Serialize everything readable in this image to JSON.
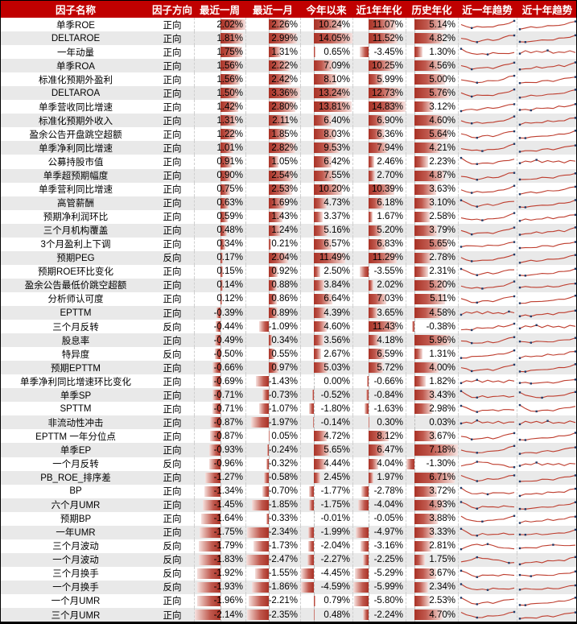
{
  "chart_data": {
    "type": "table",
    "title": "",
    "columns": [
      "因子名称",
      "因子方向",
      "最近一周",
      "最近一月",
      "今年以来",
      "近1年年化",
      "历史年化",
      "近一年趋势",
      "近十年趋势"
    ],
    "bar_columns": [
      "week",
      "month",
      "ytd",
      "y1",
      "hist"
    ],
    "bar_scales": {
      "week": {
        "min": -2.14,
        "max": 2.02
      },
      "month": {
        "min": -2.47,
        "max": 3.36
      },
      "ytd": {
        "min": -4.59,
        "max": 14.05
      },
      "y1": {
        "min": -5.99,
        "max": 14.83
      },
      "hist": {
        "min": -1.3,
        "max": 7.18
      }
    },
    "rows": [
      {
        "name": "单季ROE",
        "direction": "正向",
        "values": [
          2.02,
          2.26,
          10.24,
          11.07,
          5.14
        ],
        "trends": [
          "dipRise",
          "rise"
        ]
      },
      {
        "name": "DELTAROE",
        "direction": "正向",
        "values": [
          1.81,
          2.99,
          14.05,
          11.52,
          4.82
        ],
        "trends": [
          "dipRise2",
          "rise"
        ]
      },
      {
        "name": "一年动量",
        "direction": "正向",
        "values": [
          1.75,
          1.31,
          0.65,
          -3.45,
          1.3
        ],
        "trends": [
          "fallFlat",
          "choppy"
        ]
      },
      {
        "name": "单季ROA",
        "direction": "正向",
        "values": [
          1.56,
          2.22,
          7.09,
          10.25,
          4.56
        ],
        "trends": [
          "dipRise",
          "riseWiggle"
        ]
      },
      {
        "name": "标准化预期外盈利",
        "direction": "正向",
        "values": [
          1.56,
          2.42,
          8.1,
          5.99,
          5.0
        ],
        "trends": [
          "dipRise2",
          "rise"
        ]
      },
      {
        "name": "DELTAROA",
        "direction": "正向",
        "values": [
          1.5,
          3.36,
          13.24,
          12.73,
          5.76
        ],
        "trends": [
          "dipRise",
          "rise"
        ]
      },
      {
        "name": "单季营收同比增速",
        "direction": "正向",
        "values": [
          1.42,
          2.8,
          13.81,
          14.83,
          3.12
        ],
        "trends": [
          "rise",
          "riseWiggle"
        ]
      },
      {
        "name": "标准化预期外收入",
        "direction": "正向",
        "values": [
          1.31,
          2.11,
          6.4,
          6.9,
          4.6
        ],
        "trends": [
          "dipRise",
          "riseWiggle"
        ]
      },
      {
        "name": "盈余公告开盘跳空超额",
        "direction": "正向",
        "values": [
          1.22,
          1.85,
          8.03,
          6.36,
          5.64
        ],
        "trends": [
          "dipRise2",
          "rise"
        ]
      },
      {
        "name": "单季净利同比增速",
        "direction": "正向",
        "values": [
          1.01,
          2.82,
          9.53,
          7.94,
          4.21
        ],
        "trends": [
          "dipRise",
          "rise"
        ]
      },
      {
        "name": "公募持股市值",
        "direction": "正向",
        "values": [
          0.91,
          1.05,
          6.42,
          2.46,
          2.23
        ],
        "trends": [
          "fallRise",
          "choppy"
        ]
      },
      {
        "name": "单季超预期幅度",
        "direction": "正向",
        "values": [
          0.9,
          2.54,
          7.55,
          2.7,
          4.87
        ],
        "trends": [
          "dipRise2",
          "rise"
        ]
      },
      {
        "name": "单季营利同比增速",
        "direction": "正向",
        "values": [
          0.75,
          2.53,
          10.2,
          10.39,
          3.63
        ],
        "trends": [
          "dipRise",
          "rise"
        ]
      },
      {
        "name": "高管薪酬",
        "direction": "正向",
        "values": [
          0.63,
          1.69,
          4.73,
          6.18,
          3.1
        ],
        "trends": [
          "fallRise",
          "rise"
        ]
      },
      {
        "name": "预期净利润环比",
        "direction": "正向",
        "values": [
          0.59,
          1.43,
          3.37,
          1.67,
          2.58
        ],
        "trends": [
          "dipRise",
          "riseWiggle"
        ]
      },
      {
        "name": "三个月机构覆盖",
        "direction": "正向",
        "values": [
          0.48,
          1.24,
          5.16,
          5.2,
          3.79
        ],
        "trends": [
          "dipRise",
          "riseWiggle"
        ]
      },
      {
        "name": "3个月盈利上下调",
        "direction": "正向",
        "values": [
          0.34,
          0.21,
          6.57,
          6.83,
          5.65
        ],
        "trends": [
          "flatRise",
          "rise"
        ]
      },
      {
        "name": "预期PEG",
        "direction": "反向",
        "values": [
          0.17,
          2.04,
          11.49,
          11.29,
          2.78
        ],
        "trends": [
          "dipRise2",
          "rise"
        ]
      },
      {
        "name": "预期ROE环比变化",
        "direction": "正向",
        "values": [
          0.15,
          0.92,
          2.5,
          -3.55,
          2.31
        ],
        "trends": [
          "fallRise",
          "rise"
        ]
      },
      {
        "name": "盈余公告最低价跳空超额",
        "direction": "正向",
        "values": [
          0.14,
          0.88,
          3.84,
          2.02,
          5.2
        ],
        "trends": [
          "dipRise",
          "flatRise"
        ]
      },
      {
        "name": "分析师认可度",
        "direction": "正向",
        "values": [
          0.12,
          0.86,
          6.64,
          7.03,
          5.11
        ],
        "trends": [
          "dipRise2",
          "rise"
        ]
      },
      {
        "name": "EPTTM",
        "direction": "正向",
        "values": [
          -0.39,
          0.89,
          4.39,
          3.65,
          4.58
        ],
        "trends": [
          "choppy",
          "riseWiggle"
        ]
      },
      {
        "name": "三个月反转",
        "direction": "反向",
        "values": [
          -0.44,
          -1.09,
          4.6,
          11.43,
          -0.38
        ],
        "trends": [
          "riseWiggle",
          "choppy"
        ]
      },
      {
        "name": "股息率",
        "direction": "正向",
        "values": [
          -0.49,
          0.34,
          3.56,
          4.18,
          5.96
        ],
        "trends": [
          "dipRise",
          "flatRise"
        ]
      },
      {
        "name": "特异度",
        "direction": "反向",
        "values": [
          -0.5,
          0.55,
          2.67,
          6.59,
          1.31
        ],
        "trends": [
          "rise",
          "riseWiggle"
        ]
      },
      {
        "name": "预期EPTTM",
        "direction": "正向",
        "values": [
          -0.66,
          0.97,
          5.03,
          5.72,
          4.0
        ],
        "trends": [
          "dipRise",
          "rise"
        ]
      },
      {
        "name": "单季净利同比增速环比变化",
        "direction": "正向",
        "values": [
          -0.69,
          -1.43,
          0.0,
          -0.66,
          1.82
        ],
        "trends": [
          "choppy",
          "flatRise"
        ]
      },
      {
        "name": "单季SP",
        "direction": "正向",
        "values": [
          -0.71,
          -0.73,
          -0.52,
          -0.84,
          3.43
        ],
        "trends": [
          "fallFlat",
          "fallRise"
        ]
      },
      {
        "name": "SPTTM",
        "direction": "正向",
        "values": [
          -0.71,
          -1.07,
          -1.8,
          -1.63,
          2.98
        ],
        "trends": [
          "fallFlat",
          "fallRise"
        ]
      },
      {
        "name": "非流动性冲击",
        "direction": "正向",
        "values": [
          -0.87,
          -1.97,
          -0.14,
          0.3,
          0.03
        ],
        "trends": [
          "choppy",
          "choppy"
        ]
      },
      {
        "name": "EPTTM 一年分位点",
        "direction": "正向",
        "values": [
          -0.87,
          0.05,
          4.72,
          8.12,
          3.67
        ],
        "trends": [
          "dipRise",
          "rise"
        ]
      },
      {
        "name": "单季EP",
        "direction": "正向",
        "values": [
          -0.93,
          -0.24,
          5.65,
          6.47,
          7.18
        ],
        "trends": [
          "dipRise2",
          "rise"
        ]
      },
      {
        "name": "一个月反转",
        "direction": "反向",
        "values": [
          -0.96,
          -0.32,
          4.44,
          4.04,
          -1.3
        ],
        "trends": [
          "humpFall",
          "choppy"
        ]
      },
      {
        "name": "PB_ROE_排序差",
        "direction": "正向",
        "values": [
          -1.27,
          -0.58,
          2.45,
          1.97,
          6.71
        ],
        "trends": [
          "fallRise",
          "rise"
        ]
      },
      {
        "name": "BP",
        "direction": "正向",
        "values": [
          -1.34,
          -0.7,
          -1.77,
          -2.78,
          3.72
        ],
        "trends": [
          "fallFlat",
          "riseWiggle"
        ]
      },
      {
        "name": "六个月UMR",
        "direction": "正向",
        "values": [
          -1.45,
          -1.85,
          -1.75,
          -4.04,
          4.93
        ],
        "trends": [
          "fallFlat",
          "rise"
        ]
      },
      {
        "name": "预期BP",
        "direction": "正向",
        "values": [
          -1.64,
          -0.33,
          -0.01,
          -0.05,
          3.88
        ],
        "trends": [
          "fallRise",
          "riseWiggle"
        ]
      },
      {
        "name": "一年UMR",
        "direction": "正向",
        "values": [
          -1.75,
          -2.34,
          -1.99,
          -4.97,
          3.33
        ],
        "trends": [
          "fallFlat",
          "flatRise"
        ]
      },
      {
        "name": "三个月波动",
        "direction": "反向",
        "values": [
          -1.79,
          -1.73,
          -2.04,
          -3.16,
          2.81
        ],
        "trends": [
          "humpFall",
          "lateHump"
        ]
      },
      {
        "name": "一个月波动",
        "direction": "反向",
        "values": [
          -1.83,
          -2.47,
          -2.27,
          -2.25,
          1.75
        ],
        "trends": [
          "humpFall",
          "riseWiggle"
        ]
      },
      {
        "name": "三个月换手",
        "direction": "反向",
        "values": [
          -1.92,
          -1.55,
          -4.45,
          -5.29,
          3.67
        ],
        "trends": [
          "fallFlat",
          "flatRise"
        ]
      },
      {
        "name": "一个月换手",
        "direction": "反向",
        "values": [
          -1.93,
          -1.86,
          -4.59,
          -5.99,
          2.34
        ],
        "trends": [
          "fallFlat",
          "flatRise"
        ]
      },
      {
        "name": "一个月UMR",
        "direction": "正向",
        "values": [
          -1.96,
          -2.21,
          0.79,
          -5.8,
          2.53
        ],
        "trends": [
          "fallRise",
          "rise"
        ]
      },
      {
        "name": "三个月UMR",
        "direction": "正向",
        "values": [
          -2.14,
          -2.35,
          0.48,
          -2.24,
          4.7
        ],
        "trends": [
          "fallRise",
          "rise"
        ]
      }
    ]
  },
  "sparkline_shapes": {
    "dipRise": [
      0.5,
      0.38,
      0.22,
      0.3,
      0.26,
      0.36,
      0.3,
      0.42,
      0.55,
      0.72,
      0.9
    ],
    "dipRise2": [
      0.55,
      0.4,
      0.25,
      0.2,
      0.3,
      0.38,
      0.34,
      0.45,
      0.6,
      0.78,
      0.88
    ],
    "rise": [
      0.12,
      0.18,
      0.26,
      0.24,
      0.34,
      0.4,
      0.38,
      0.5,
      0.58,
      0.7,
      0.84
    ],
    "riseWiggle": [
      0.15,
      0.28,
      0.22,
      0.38,
      0.32,
      0.46,
      0.4,
      0.56,
      0.5,
      0.7,
      0.82
    ],
    "fallFlat": [
      0.88,
      0.6,
      0.35,
      0.25,
      0.4,
      0.32,
      0.42,
      0.36,
      0.44,
      0.38,
      0.42
    ],
    "fallRise": [
      0.85,
      0.55,
      0.35,
      0.25,
      0.32,
      0.42,
      0.36,
      0.48,
      0.58,
      0.7,
      0.8
    ],
    "humpFall": [
      0.3,
      0.48,
      0.62,
      0.78,
      0.68,
      0.74,
      0.58,
      0.48,
      0.4,
      0.3,
      0.26
    ],
    "choppy": [
      0.4,
      0.62,
      0.44,
      0.68,
      0.5,
      0.64,
      0.42,
      0.6,
      0.46,
      0.62,
      0.52
    ],
    "lateHump": [
      0.3,
      0.36,
      0.44,
      0.4,
      0.52,
      0.62,
      0.76,
      0.66,
      0.56,
      0.64,
      0.72
    ],
    "flatRise": [
      0.35,
      0.38,
      0.34,
      0.4,
      0.36,
      0.42,
      0.4,
      0.48,
      0.55,
      0.65,
      0.78
    ]
  },
  "colors": {
    "header_bg": "#C00000",
    "header_text": "#FFFFFF",
    "stripe": "#E9E9E9",
    "bar_solid": "#A93226",
    "bar_light": "#F6E2E0",
    "spark_line": "#BE3D2E",
    "spark_marker": "#1F3A67"
  }
}
